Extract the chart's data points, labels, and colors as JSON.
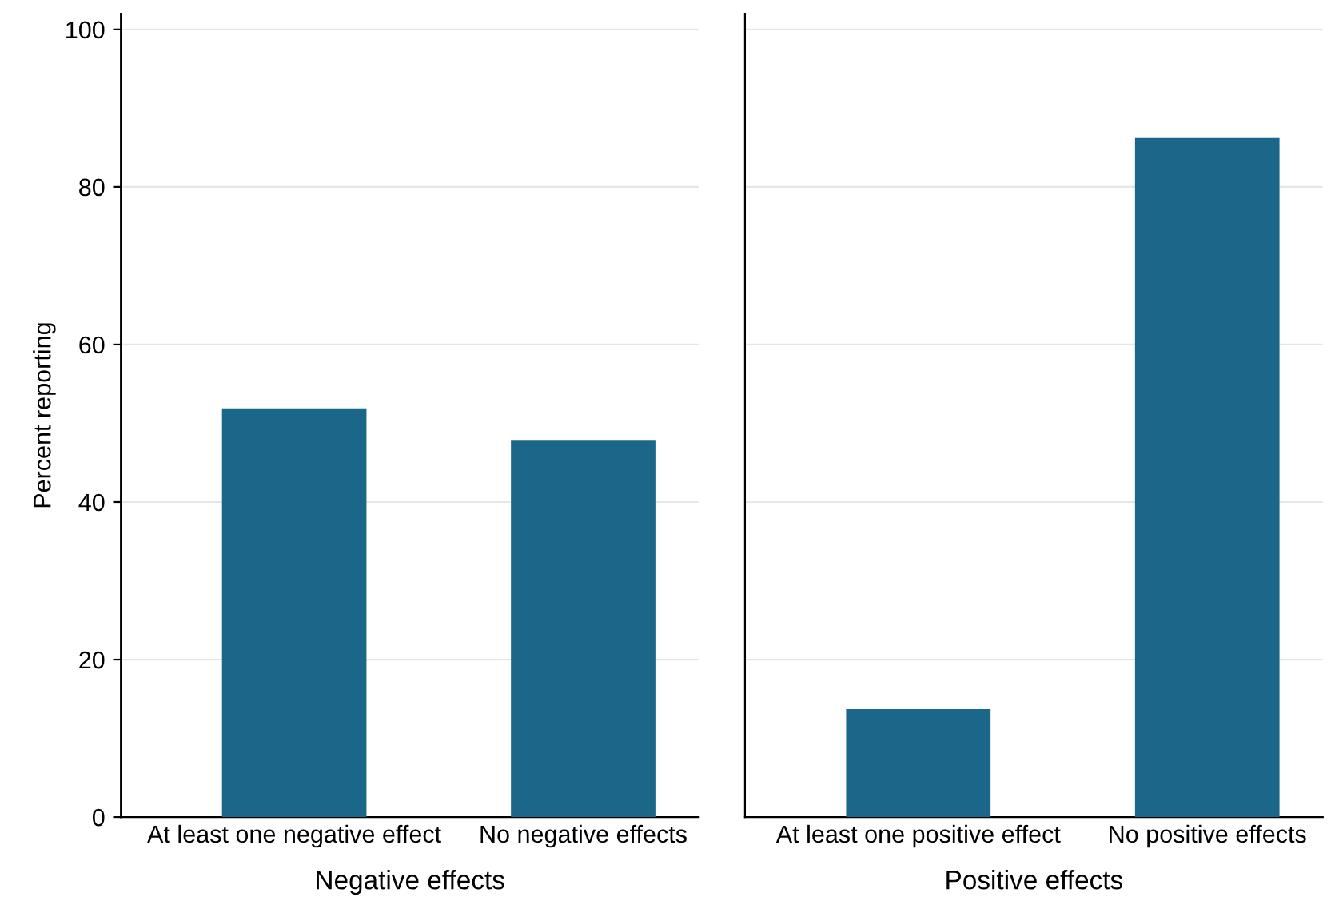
{
  "chart_data": [
    {
      "type": "bar",
      "categories": [
        "At least one negative effect",
        "No negative effects"
      ],
      "values": [
        51.9,
        47.9
      ],
      "color": "#1b6789",
      "xlabel": "Negative effects",
      "ylabel": "Percent reporting",
      "ylim": [
        0,
        102
      ],
      "yticks": [
        0,
        20,
        40,
        60,
        80,
        100
      ],
      "grid": "y"
    },
    {
      "type": "bar",
      "categories": [
        "At least one positive effect",
        "No positive effects"
      ],
      "values": [
        13.7,
        86.3
      ],
      "color": "#1b6789",
      "xlabel": "Positive effects",
      "ylim": [
        0,
        102
      ],
      "yticks": [
        0,
        20,
        40,
        60,
        80,
        100
      ],
      "grid": "y",
      "tick_labels": "x"
    }
  ]
}
